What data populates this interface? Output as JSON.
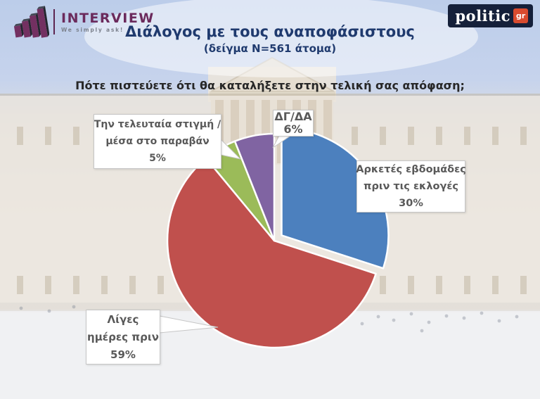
{
  "header": {
    "interview_logo": {
      "brand": "INTERVIEW",
      "tagline": "We simply ask!",
      "brand_color": "#6b2a5c"
    },
    "politic_logo": {
      "brand": "politic",
      "suffix": "gr",
      "bg_color": "#15203a",
      "accent_color": "#d84b2f"
    },
    "title": "Διάλογος με τους αναποφάσιστους",
    "subtitle": "(δείγμα N=561 άτομα)",
    "title_color": "#1f3a6e"
  },
  "question": {
    "text": "Πότε πιστεύετε ότι θα καταλήξετε στην τελική σας απόφαση;"
  },
  "chart_data": {
    "type": "pie",
    "title": "Διάλογος με τους αναποφάσιστους",
    "sample_note": "(δείγμα N=561 άτομα)",
    "question": "Πότε πιστεύετε ότι θα καταλήξετε στην τελική σας απόφαση;",
    "start_angle_deg": 0,
    "direction": "clockwise",
    "legend_position": "callouts",
    "slices": [
      {
        "label": "Αρκετές εβδομάδες πριν τις εκλογές",
        "value": 30,
        "color": "#4C80BE",
        "exploded": true
      },
      {
        "label": "Λίγες ημέρες πριν",
        "value": 59,
        "color": "#C0504D",
        "exploded": false
      },
      {
        "label": "Την τελευταία στιγμή / μέσα στο παραβάν",
        "value": 5,
        "color": "#9BBB59",
        "exploded": false
      },
      {
        "label": "ΔΓ/ΔΑ",
        "value": 6,
        "color": "#8064A2",
        "exploded": false
      }
    ]
  },
  "callouts": {
    "last_minute": {
      "lines": [
        "Την τελευταία στιγμή /",
        "μέσα στο παραβάν"
      ],
      "pct": "5%"
    },
    "dk_na": {
      "lines": [
        "ΔΓ/ΔΑ"
      ],
      "pct": "6%"
    },
    "several_weeks": {
      "lines": [
        "Αρκετές εβδομάδες",
        "πριν τις εκλογές"
      ],
      "pct": "30%"
    },
    "few_days": {
      "lines": [
        "Λίγες",
        "ημέρες πριν"
      ],
      "pct": "59%"
    }
  }
}
